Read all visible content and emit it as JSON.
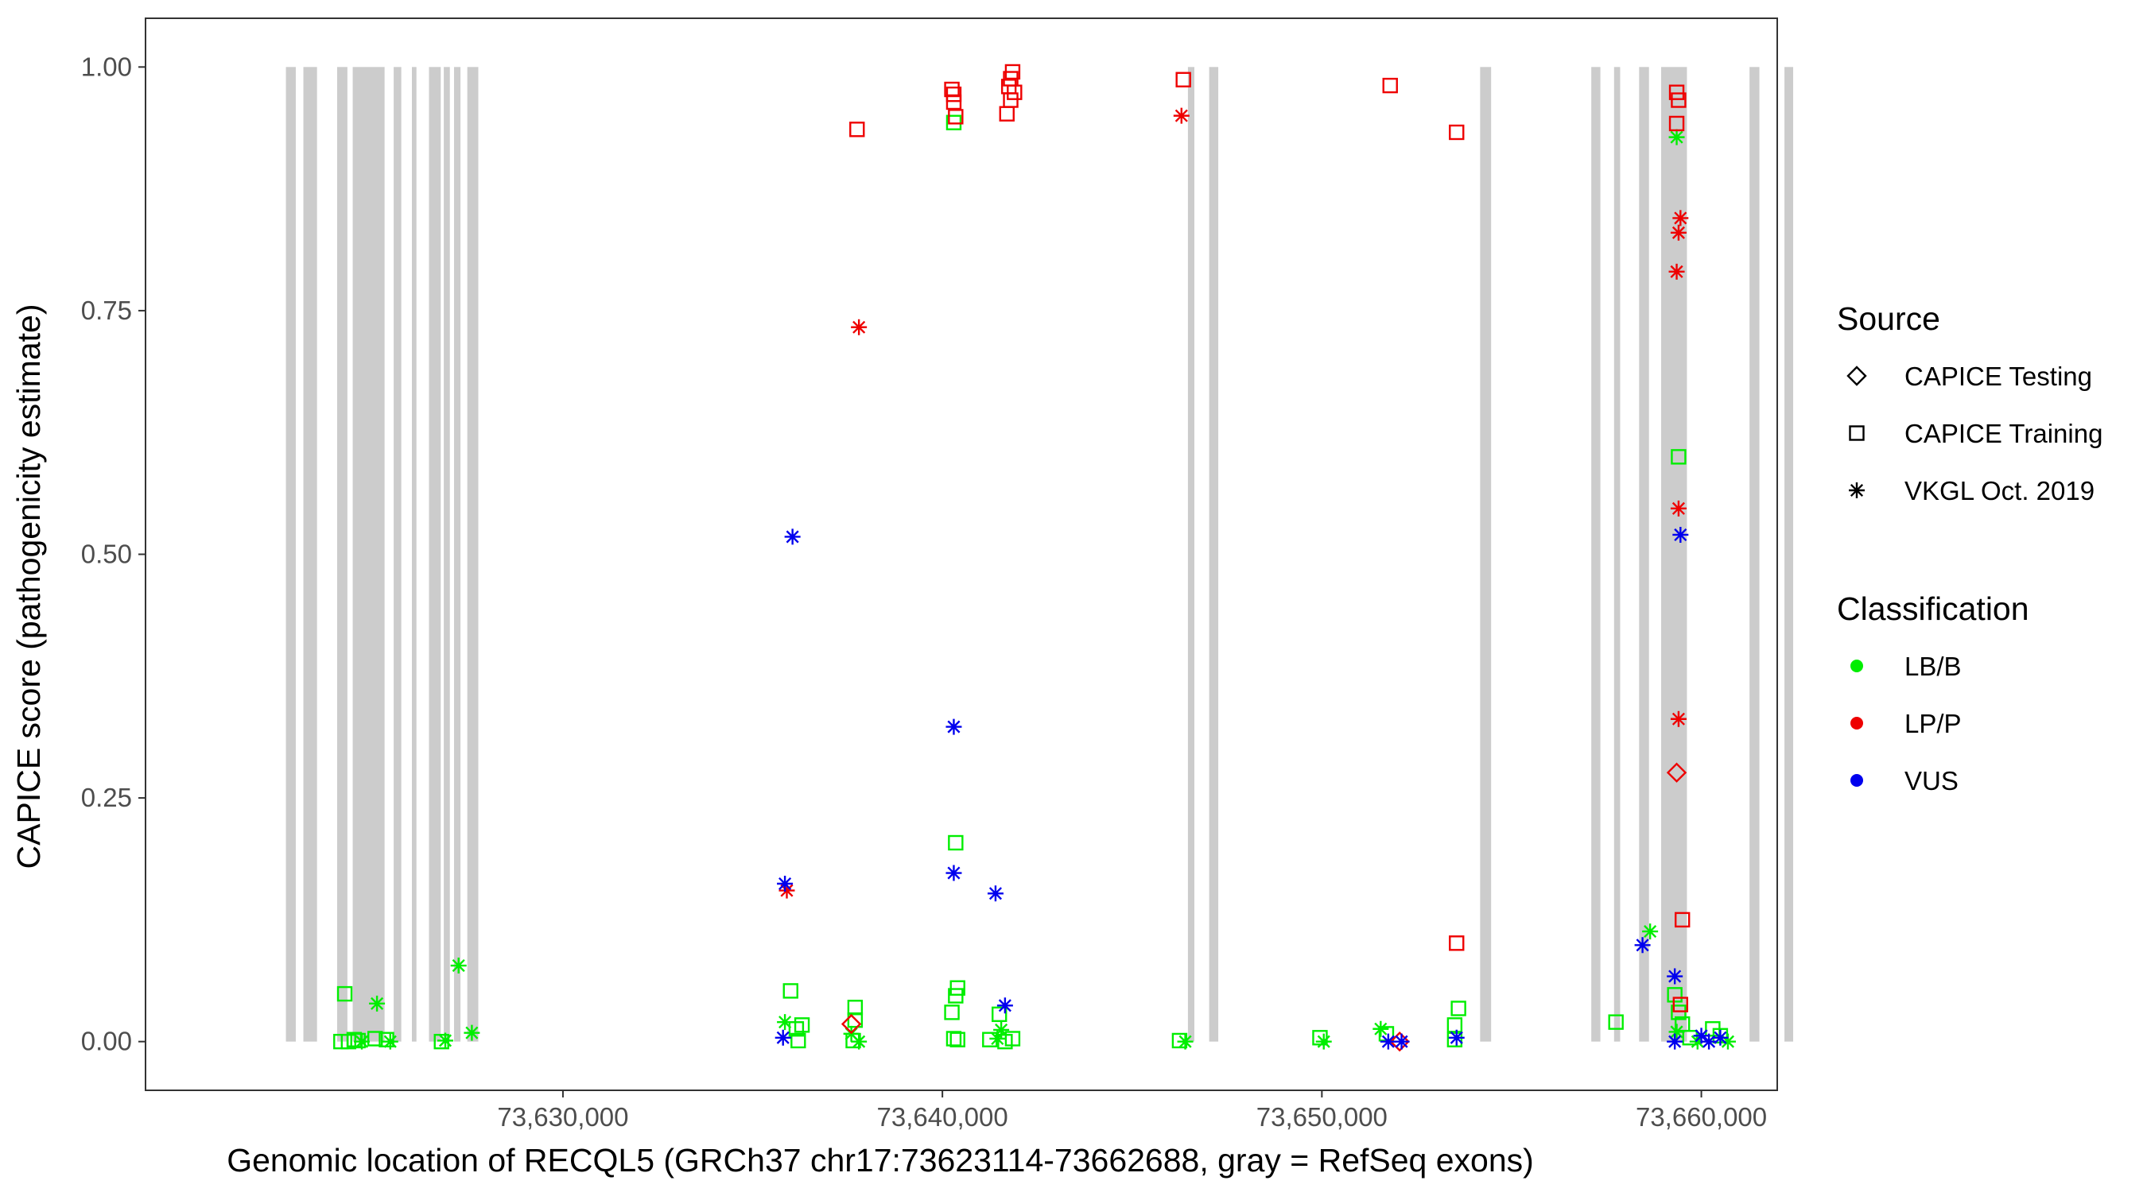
{
  "chart_data": {
    "type": "scatter",
    "title": "",
    "xlabel": "Genomic location of RECQL5 (GRCh37 chr17:73623114-73662688, gray = RefSeq exons)",
    "ylabel": "CAPICE score (pathogenicity estimate)",
    "xlim": [
      73619000,
      73662000
    ],
    "ylim": [
      -0.05,
      1.05
    ],
    "x_ticks": [
      73630000,
      73640000,
      73650000,
      73660000
    ],
    "x_tick_labels": [
      "73,630,000",
      "73,640,000",
      "73,650,000",
      "73,660,000"
    ],
    "y_ticks": [
      0,
      0.25,
      0.5,
      0.75,
      1.0
    ],
    "y_tick_labels": [
      "0.00",
      "0.25",
      "0.50",
      "0.75",
      "1.00"
    ],
    "grid": false,
    "legend_placement": "right",
    "exons": [
      [
        73622700,
        73622960
      ],
      [
        73623160,
        73623520
      ],
      [
        73624050,
        73624320
      ],
      [
        73624460,
        73625300
      ],
      [
        73625540,
        73625740
      ],
      [
        73626020,
        73626140
      ],
      [
        73626470,
        73626780
      ],
      [
        73626860,
        73627020
      ],
      [
        73627130,
        73627300
      ],
      [
        73627480,
        73627770
      ],
      [
        73646470,
        73646640
      ],
      [
        73647030,
        73647270
      ],
      [
        73654170,
        73654460
      ],
      [
        73657100,
        73657340
      ],
      [
        73657700,
        73657860
      ],
      [
        73658360,
        73658620
      ],
      [
        73658940,
        73659620
      ],
      [
        73661270,
        73661530
      ],
      [
        73662190,
        73662420
      ]
    ],
    "legend": {
      "source_title": "Source",
      "source_items": [
        {
          "label": "CAPICE Testing",
          "shape": "diamond"
        },
        {
          "label": "CAPICE Training",
          "shape": "square"
        },
        {
          "label": "VKGL Oct. 2019",
          "shape": "asterisk"
        }
      ],
      "class_title": "Classification",
      "class_items": [
        {
          "label": "LB/B",
          "color": "#00ee00"
        },
        {
          "label": "LP/P",
          "color": "#ee0000"
        },
        {
          "label": "VUS",
          "color": "#0000ee"
        }
      ]
    },
    "series": [
      {
        "name": "LB/B",
        "color": "#00ee00",
        "points": [
          {
            "x": 73624250,
            "y": 0.049,
            "shape": "square"
          },
          {
            "x": 73624150,
            "y": 0.0,
            "shape": "square"
          },
          {
            "x": 73624350,
            "y": 0.0,
            "shape": "square"
          },
          {
            "x": 73624500,
            "y": 0.002,
            "shape": "square"
          },
          {
            "x": 73624600,
            "y": 0.001,
            "shape": "square"
          },
          {
            "x": 73624700,
            "y": 0.0,
            "shape": "asterisk"
          },
          {
            "x": 73625050,
            "y": 0.003,
            "shape": "square"
          },
          {
            "x": 73625100,
            "y": 0.039,
            "shape": "asterisk"
          },
          {
            "x": 73625350,
            "y": 0.002,
            "shape": "square"
          },
          {
            "x": 73625450,
            "y": 0.0,
            "shape": "asterisk"
          },
          {
            "x": 73626800,
            "y": 0.0,
            "shape": "square"
          },
          {
            "x": 73626900,
            "y": 0.001,
            "shape": "asterisk"
          },
          {
            "x": 73627250,
            "y": 0.078,
            "shape": "asterisk"
          },
          {
            "x": 73627600,
            "y": 0.009,
            "shape": "asterisk"
          },
          {
            "x": 73635850,
            "y": 0.02,
            "shape": "asterisk"
          },
          {
            "x": 73636000,
            "y": 0.052,
            "shape": "square"
          },
          {
            "x": 73636150,
            "y": 0.013,
            "shape": "square"
          },
          {
            "x": 73636300,
            "y": 0.017,
            "shape": "square"
          },
          {
            "x": 73636200,
            "y": 0.001,
            "shape": "square"
          },
          {
            "x": 73637700,
            "y": 0.035,
            "shape": "square"
          },
          {
            "x": 73637700,
            "y": 0.022,
            "shape": "square"
          },
          {
            "x": 73637600,
            "y": 0.008,
            "shape": "asterisk"
          },
          {
            "x": 73637650,
            "y": 0.001,
            "shape": "square"
          },
          {
            "x": 73637800,
            "y": 0.0,
            "shape": "asterisk"
          },
          {
            "x": 73640300,
            "y": 0.943,
            "shape": "square"
          },
          {
            "x": 73640350,
            "y": 0.204,
            "shape": "square"
          },
          {
            "x": 73640400,
            "y": 0.055,
            "shape": "square"
          },
          {
            "x": 73640350,
            "y": 0.047,
            "shape": "square"
          },
          {
            "x": 73640250,
            "y": 0.03,
            "shape": "square"
          },
          {
            "x": 73640300,
            "y": 0.003,
            "shape": "square"
          },
          {
            "x": 73640400,
            "y": 0.002,
            "shape": "square"
          },
          {
            "x": 73641250,
            "y": 0.002,
            "shape": "square"
          },
          {
            "x": 73641500,
            "y": 0.028,
            "shape": "square"
          },
          {
            "x": 73641550,
            "y": 0.012,
            "shape": "asterisk"
          },
          {
            "x": 73641450,
            "y": 0.003,
            "shape": "asterisk"
          },
          {
            "x": 73641650,
            "y": 0.0,
            "shape": "square"
          },
          {
            "x": 73641850,
            "y": 0.003,
            "shape": "square"
          },
          {
            "x": 73646250,
            "y": 0.001,
            "shape": "square"
          },
          {
            "x": 73646400,
            "y": 0.0,
            "shape": "asterisk"
          },
          {
            "x": 73649950,
            "y": 0.004,
            "shape": "square"
          },
          {
            "x": 73650050,
            "y": 0.0,
            "shape": "asterisk"
          },
          {
            "x": 73651550,
            "y": 0.013,
            "shape": "asterisk"
          },
          {
            "x": 73651700,
            "y": 0.008,
            "shape": "square"
          },
          {
            "x": 73653600,
            "y": 0.034,
            "shape": "square"
          },
          {
            "x": 73653500,
            "y": 0.017,
            "shape": "square"
          },
          {
            "x": 73653500,
            "y": 0.002,
            "shape": "square"
          },
          {
            "x": 73657750,
            "y": 0.02,
            "shape": "square"
          },
          {
            "x": 73658650,
            "y": 0.113,
            "shape": "asterisk"
          },
          {
            "x": 73659350,
            "y": 0.928,
            "shape": "asterisk"
          },
          {
            "x": 73659400,
            "y": 0.6,
            "shape": "square"
          },
          {
            "x": 73659300,
            "y": 0.048,
            "shape": "square"
          },
          {
            "x": 73659400,
            "y": 0.03,
            "shape": "square"
          },
          {
            "x": 73659500,
            "y": 0.018,
            "shape": "square"
          },
          {
            "x": 73659350,
            "y": 0.01,
            "shape": "asterisk"
          },
          {
            "x": 73659700,
            "y": 0.004,
            "shape": "square"
          },
          {
            "x": 73659900,
            "y": 0.0,
            "shape": "asterisk"
          },
          {
            "x": 73660300,
            "y": 0.013,
            "shape": "square"
          },
          {
            "x": 73660500,
            "y": 0.006,
            "shape": "square"
          },
          {
            "x": 73660700,
            "y": 0.0,
            "shape": "asterisk"
          }
        ]
      },
      {
        "name": "LP/P",
        "color": "#ee0000",
        "points": [
          {
            "x": 73637750,
            "y": 0.936,
            "shape": "square"
          },
          {
            "x": 73637800,
            "y": 0.733,
            "shape": "asterisk"
          },
          {
            "x": 73637600,
            "y": 0.018,
            "shape": "diamond"
          },
          {
            "x": 73635900,
            "y": 0.155,
            "shape": "asterisk"
          },
          {
            "x": 73640250,
            "y": 0.977,
            "shape": "square"
          },
          {
            "x": 73640300,
            "y": 0.972,
            "shape": "square"
          },
          {
            "x": 73640300,
            "y": 0.964,
            "shape": "square"
          },
          {
            "x": 73640350,
            "y": 0.949,
            "shape": "square"
          },
          {
            "x": 73641850,
            "y": 0.995,
            "shape": "square"
          },
          {
            "x": 73641800,
            "y": 0.988,
            "shape": "square"
          },
          {
            "x": 73641750,
            "y": 0.98,
            "shape": "square"
          },
          {
            "x": 73641900,
            "y": 0.974,
            "shape": "square"
          },
          {
            "x": 73641800,
            "y": 0.966,
            "shape": "square"
          },
          {
            "x": 73641700,
            "y": 0.952,
            "shape": "square"
          },
          {
            "x": 73646350,
            "y": 0.987,
            "shape": "square"
          },
          {
            "x": 73646300,
            "y": 0.95,
            "shape": "asterisk"
          },
          {
            "x": 73651800,
            "y": 0.981,
            "shape": "square"
          },
          {
            "x": 73653550,
            "y": 0.933,
            "shape": "square"
          },
          {
            "x": 73653550,
            "y": 0.101,
            "shape": "square"
          },
          {
            "x": 73652050,
            "y": 0.0,
            "shape": "diamond"
          },
          {
            "x": 73659350,
            "y": 0.974,
            "shape": "square"
          },
          {
            "x": 73659400,
            "y": 0.966,
            "shape": "square"
          },
          {
            "x": 73659350,
            "y": 0.942,
            "shape": "square"
          },
          {
            "x": 73659450,
            "y": 0.845,
            "shape": "asterisk"
          },
          {
            "x": 73659400,
            "y": 0.83,
            "shape": "asterisk"
          },
          {
            "x": 73659350,
            "y": 0.79,
            "shape": "asterisk"
          },
          {
            "x": 73659400,
            "y": 0.547,
            "shape": "asterisk"
          },
          {
            "x": 73659400,
            "y": 0.331,
            "shape": "asterisk"
          },
          {
            "x": 73659350,
            "y": 0.276,
            "shape": "diamond"
          },
          {
            "x": 73659500,
            "y": 0.125,
            "shape": "square"
          },
          {
            "x": 73659450,
            "y": 0.038,
            "shape": "square"
          }
        ]
      },
      {
        "name": "VUS",
        "color": "#0000ee",
        "points": [
          {
            "x": 73636050,
            "y": 0.518,
            "shape": "asterisk"
          },
          {
            "x": 73635850,
            "y": 0.162,
            "shape": "asterisk"
          },
          {
            "x": 73635800,
            "y": 0.004,
            "shape": "asterisk"
          },
          {
            "x": 73640300,
            "y": 0.323,
            "shape": "asterisk"
          },
          {
            "x": 73640300,
            "y": 0.173,
            "shape": "asterisk"
          },
          {
            "x": 73641400,
            "y": 0.152,
            "shape": "asterisk"
          },
          {
            "x": 73641650,
            "y": 0.037,
            "shape": "asterisk"
          },
          {
            "x": 73651750,
            "y": 0.0,
            "shape": "asterisk"
          },
          {
            "x": 73652100,
            "y": 0.0,
            "shape": "asterisk"
          },
          {
            "x": 73653550,
            "y": 0.004,
            "shape": "asterisk"
          },
          {
            "x": 73658450,
            "y": 0.099,
            "shape": "asterisk"
          },
          {
            "x": 73659300,
            "y": 0.067,
            "shape": "asterisk"
          },
          {
            "x": 73659450,
            "y": 0.52,
            "shape": "asterisk"
          },
          {
            "x": 73659300,
            "y": 0.0,
            "shape": "asterisk"
          },
          {
            "x": 73660000,
            "y": 0.006,
            "shape": "asterisk"
          },
          {
            "x": 73660200,
            "y": 0.0,
            "shape": "asterisk"
          },
          {
            "x": 73660500,
            "y": 0.004,
            "shape": "asterisk"
          }
        ]
      }
    ]
  }
}
